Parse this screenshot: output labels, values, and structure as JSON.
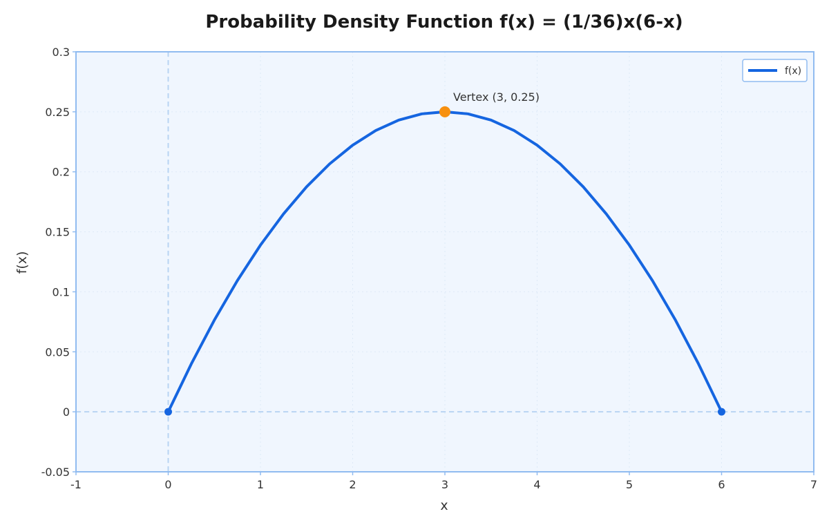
{
  "chart_data": {
    "type": "line",
    "title": "Probability Density Function f(x) = (1/36)x(6-x)",
    "xlabel": "x",
    "ylabel": "f(x)",
    "xlim": [
      -1,
      7
    ],
    "ylim": [
      -0.05,
      0.3
    ],
    "x_ticks": [
      "-1",
      "0",
      "1",
      "2",
      "3",
      "4",
      "5",
      "6",
      "7"
    ],
    "y_ticks": [
      "-0.05",
      "0",
      "0.05",
      "0.1",
      "0.15",
      "0.2",
      "0.25",
      "0.3"
    ],
    "grid": true,
    "legend_position": "top-right",
    "series": [
      {
        "name": "f(x)",
        "color": "#1565e0",
        "x": [
          0,
          0.25,
          0.5,
          0.75,
          1,
          1.25,
          1.5,
          1.75,
          2,
          2.25,
          2.5,
          2.75,
          3,
          3.25,
          3.5,
          3.75,
          4,
          4.25,
          4.5,
          4.75,
          5,
          5.25,
          5.5,
          5.75,
          6
        ],
        "y": [
          0,
          0.0399,
          0.0764,
          0.1094,
          0.1389,
          0.1649,
          0.1875,
          0.2066,
          0.2222,
          0.2344,
          0.2431,
          0.2483,
          0.25,
          0.2483,
          0.2431,
          0.2344,
          0.2222,
          0.2066,
          0.1875,
          0.1649,
          0.1389,
          0.1094,
          0.0764,
          0.0399,
          0
        ]
      }
    ],
    "endpoints": [
      {
        "x": 0,
        "y": 0
      },
      {
        "x": 6,
        "y": 0
      }
    ],
    "vertex": {
      "x": 3,
      "y": 0.25,
      "label": "Vertex (3, 0.25)",
      "color": "#f7900f"
    },
    "reference_lines": {
      "x": 0,
      "y": 0
    },
    "colors": {
      "plot_background": "#f0f6fe",
      "frame": "#90bbf0",
      "reference_line": "#b9d4f3",
      "grid": "#dde9f7",
      "endpoint": "#1565e0"
    }
  }
}
